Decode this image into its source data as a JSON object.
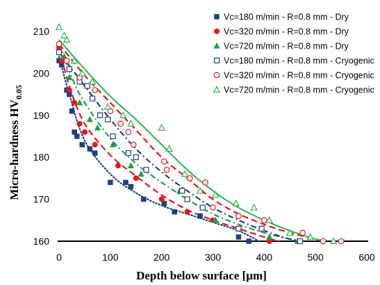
{
  "chart_data": {
    "type": "scatter",
    "title": "",
    "xlabel": "Depth below surface [µm]",
    "ylabel": "Micro-hardness HV",
    "ylabel_sub": "0.05",
    "xlim": [
      0,
      600
    ],
    "ylim": [
      160,
      212
    ],
    "xticks": [
      0,
      100,
      200,
      300,
      400,
      500,
      600
    ],
    "yticks": [
      160,
      170,
      180,
      190,
      200,
      210
    ],
    "grid": false,
    "legend_position": "top-right",
    "series": [
      {
        "name": "Vc=180 m/min - R=0.8 mm - Dry",
        "color": "#1f3f7f",
        "marker": "square-filled",
        "line_style": "dotted",
        "points": [
          [
            0,
            203
          ],
          [
            5,
            202
          ],
          [
            15,
            196
          ],
          [
            20,
            195
          ],
          [
            25,
            191
          ],
          [
            30,
            186
          ],
          [
            35,
            185
          ],
          [
            45,
            183
          ],
          [
            60,
            182
          ],
          [
            70,
            181
          ],
          [
            100,
            174
          ],
          [
            130,
            174
          ],
          [
            140,
            173
          ],
          [
            165,
            170
          ],
          [
            205,
            169
          ],
          [
            225,
            167
          ],
          [
            275,
            166
          ],
          [
            350,
            161
          ],
          [
            370,
            160
          ]
        ],
        "fit": [
          [
            0,
            204
          ],
          [
            20,
            195
          ],
          [
            50,
            184
          ],
          [
            100,
            176
          ],
          [
            150,
            171.5
          ],
          [
            200,
            168.5
          ],
          [
            250,
            166.5
          ],
          [
            300,
            164.5
          ],
          [
            350,
            162.5
          ],
          [
            390,
            160
          ]
        ]
      },
      {
        "name": "Vc=320 m/min - R=0.8 mm - Dry",
        "color": "#e8141c",
        "marker": "circle-filled",
        "line_style": "dashed",
        "points": [
          [
            0,
            206
          ],
          [
            5,
            203
          ],
          [
            20,
            196
          ],
          [
            30,
            193
          ],
          [
            40,
            188
          ],
          [
            50,
            186
          ],
          [
            70,
            183
          ],
          [
            115,
            178
          ],
          [
            150,
            175
          ],
          [
            200,
            170
          ],
          [
            250,
            167
          ],
          [
            300,
            165
          ],
          [
            410,
            160
          ]
        ],
        "fit": [
          [
            0,
            206
          ],
          [
            20,
            197
          ],
          [
            50,
            188
          ],
          [
            100,
            180.5
          ],
          [
            150,
            175.5
          ],
          [
            200,
            171
          ],
          [
            250,
            167.5
          ],
          [
            300,
            165
          ],
          [
            350,
            163
          ],
          [
            400,
            161
          ],
          [
            430,
            160
          ]
        ]
      },
      {
        "name": "Vc=720 m/min - R=0.8 mm - Dry",
        "color": "#1f9e49",
        "marker": "triangle-filled",
        "line_style": "dashdot",
        "points": [
          [
            0,
            207
          ],
          [
            10,
            204
          ],
          [
            20,
            199
          ],
          [
            40,
            193
          ],
          [
            60,
            189
          ],
          [
            75,
            187
          ],
          [
            105,
            183
          ],
          [
            140,
            178
          ],
          [
            160,
            176
          ],
          [
            235,
            172
          ],
          [
            305,
            165
          ],
          [
            410,
            161
          ],
          [
            465,
            160
          ]
        ],
        "fit": [
          [
            0,
            207
          ],
          [
            25,
            199
          ],
          [
            50,
            193
          ],
          [
            100,
            184.5
          ],
          [
            150,
            178.5
          ],
          [
            200,
            174
          ],
          [
            250,
            170
          ],
          [
            300,
            166.5
          ],
          [
            350,
            164
          ],
          [
            400,
            162
          ],
          [
            450,
            160.5
          ],
          [
            470,
            160
          ]
        ]
      },
      {
        "name": "Vc=180 m/min - R=0.8 mm - Cryogenic",
        "color": "#1f3f7f",
        "marker": "square-open",
        "line_style": "dashdot",
        "points": [
          [
            0,
            205
          ],
          [
            20,
            201
          ],
          [
            40,
            198
          ],
          [
            55,
            197
          ],
          [
            65,
            194
          ],
          [
            80,
            190
          ],
          [
            95,
            189
          ],
          [
            105,
            185
          ],
          [
            135,
            181
          ],
          [
            150,
            180
          ],
          [
            170,
            177
          ],
          [
            240,
            172
          ],
          [
            250,
            170
          ],
          [
            280,
            168
          ],
          [
            350,
            163
          ],
          [
            395,
            163
          ],
          [
            470,
            160
          ]
        ],
        "fit": [
          [
            0,
            205
          ],
          [
            25,
            201
          ],
          [
            50,
            197
          ],
          [
            100,
            189
          ],
          [
            150,
            182
          ],
          [
            200,
            176.5
          ],
          [
            250,
            172
          ],
          [
            300,
            168
          ],
          [
            350,
            165
          ],
          [
            400,
            162.5
          ],
          [
            450,
            160.5
          ],
          [
            480,
            160
          ]
        ]
      },
      {
        "name": "Vc=320 m/min - R=0.8 mm - Cryogenic",
        "color": "#e8141c",
        "marker": "circle-open",
        "line_style": "dashed",
        "points": [
          [
            0,
            207
          ],
          [
            15,
            203
          ],
          [
            40,
            199
          ],
          [
            70,
            196
          ],
          [
            100,
            191
          ],
          [
            120,
            188
          ],
          [
            135,
            186
          ],
          [
            145,
            183
          ],
          [
            205,
            179
          ],
          [
            210,
            177
          ],
          [
            255,
            175
          ],
          [
            285,
            174
          ],
          [
            300,
            168
          ],
          [
            350,
            166
          ],
          [
            400,
            165
          ],
          [
            475,
            162
          ],
          [
            515,
            160
          ],
          [
            550,
            160
          ]
        ],
        "fit": [
          [
            0,
            207
          ],
          [
            50,
            199.5
          ],
          [
            100,
            193
          ],
          [
            150,
            186.5
          ],
          [
            200,
            180
          ],
          [
            250,
            175
          ],
          [
            300,
            170
          ],
          [
            350,
            166.5
          ],
          [
            400,
            164
          ],
          [
            450,
            162
          ],
          [
            500,
            160.5
          ],
          [
            520,
            160
          ]
        ]
      },
      {
        "name": "Vc=720 m/min - R=0.8 mm - Cryogenic",
        "color": "#2db34a",
        "marker": "triangle-open",
        "line_style": "solid",
        "points": [
          [
            0,
            211
          ],
          [
            10,
            209
          ],
          [
            15,
            208
          ],
          [
            30,
            203
          ],
          [
            45,
            200
          ],
          [
            65,
            198
          ],
          [
            95,
            192
          ],
          [
            125,
            190
          ],
          [
            140,
            188
          ],
          [
            200,
            187
          ],
          [
            215,
            182
          ],
          [
            245,
            176
          ],
          [
            275,
            172
          ],
          [
            305,
            171
          ],
          [
            345,
            169
          ],
          [
            380,
            168
          ],
          [
            410,
            165
          ],
          [
            450,
            162
          ],
          [
            490,
            161
          ],
          [
            535,
            160
          ]
        ],
        "fit": [
          [
            0,
            208
          ],
          [
            50,
            201
          ],
          [
            100,
            194.5
          ],
          [
            150,
            189
          ],
          [
            200,
            183
          ],
          [
            250,
            177
          ],
          [
            300,
            172
          ],
          [
            350,
            168
          ],
          [
            400,
            165
          ],
          [
            450,
            162.5
          ],
          [
            500,
            160.5
          ],
          [
            520,
            160
          ]
        ]
      }
    ]
  }
}
